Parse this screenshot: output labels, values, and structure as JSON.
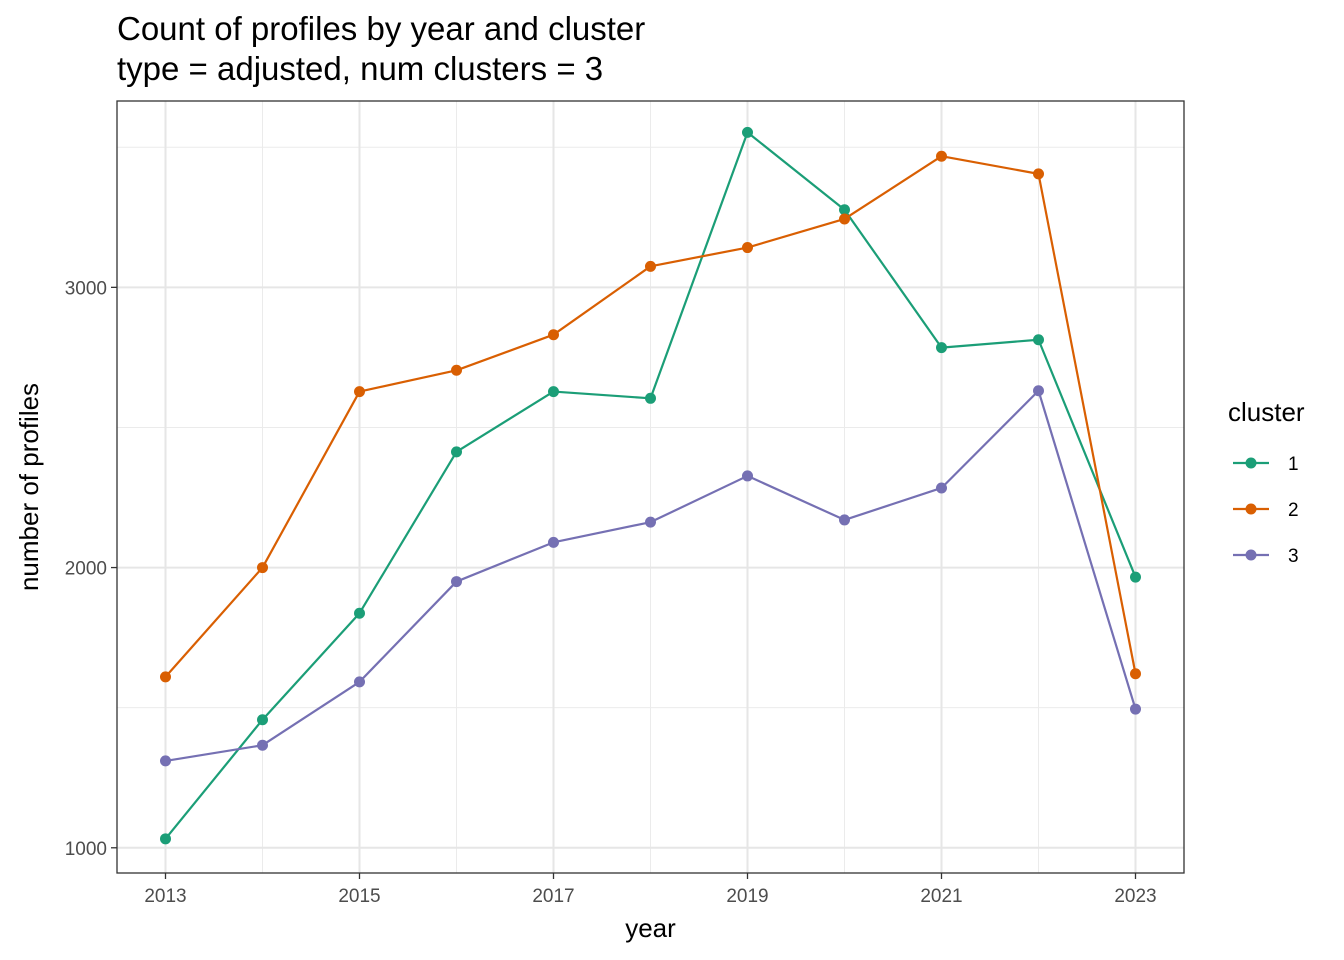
{
  "chart_data": {
    "type": "line",
    "title": "Count of profiles by year and cluster",
    "subtitle": "type = adjusted, num clusters = 3",
    "xlabel": "year",
    "ylabel": "number of profiles",
    "x": [
      2013,
      2014,
      2015,
      2016,
      2017,
      2018,
      2019,
      2020,
      2021,
      2022,
      2023
    ],
    "xlim": [
      2012.5,
      2023.5
    ],
    "ylim": [
      910,
      3665
    ],
    "xticks": [
      2013,
      2015,
      2017,
      2019,
      2021,
      2023
    ],
    "yticks": [
      1000,
      2000,
      3000
    ],
    "grid": true,
    "legend": {
      "title": "cluster",
      "position": "right"
    },
    "series": [
      {
        "name": "1",
        "color": "#1b9e77",
        "values": [
          1032,
          1457,
          1837,
          2413,
          2628,
          2604,
          3553,
          3277,
          2785,
          2813,
          1966
        ]
      },
      {
        "name": "2",
        "color": "#d95f02",
        "values": [
          1610,
          2000,
          2628,
          2704,
          2831,
          3075,
          3142,
          3244,
          3468,
          3405,
          1621
        ]
      },
      {
        "name": "3",
        "color": "#7570b3",
        "values": [
          1310,
          1366,
          1592,
          1950,
          2090,
          2162,
          2327,
          2170,
          2284,
          2631,
          1495
        ]
      }
    ]
  }
}
